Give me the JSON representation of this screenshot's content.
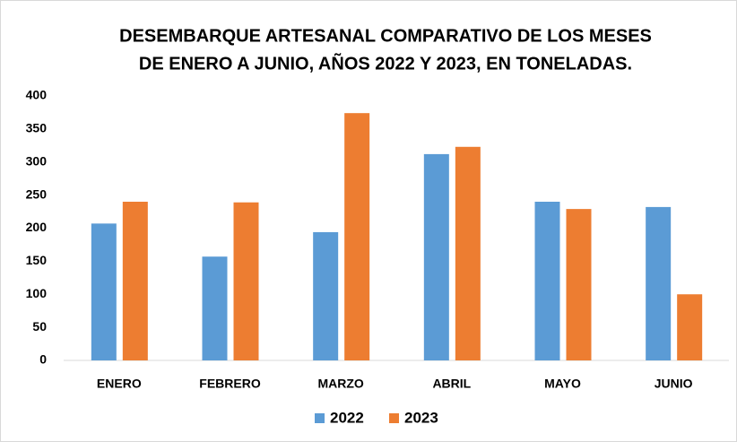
{
  "chart_data": {
    "type": "bar",
    "title": [
      "DESEMBARQUE ARTESANAL COMPARATIVO DE LOS MESES",
      "DE ENERO A JUNIO, AÑOS 2022 Y 2023, EN TONELADAS."
    ],
    "categories": [
      "ENERO",
      "FEBRERO",
      "MARZO",
      "ABRIL",
      "MAYO",
      "JUNIO"
    ],
    "series": [
      {
        "name": "2022",
        "color": "#5b9bd5",
        "values": [
          207,
          157,
          194,
          312,
          240,
          232
        ]
      },
      {
        "name": "2023",
        "color": "#ed7d31",
        "values": [
          240,
          239,
          374,
          323,
          229,
          100
        ]
      }
    ],
    "ylim": [
      0,
      400
    ],
    "yticks": [
      0,
      50,
      100,
      150,
      200,
      250,
      300,
      350,
      400
    ],
    "grid": false,
    "legend": "bottom"
  }
}
